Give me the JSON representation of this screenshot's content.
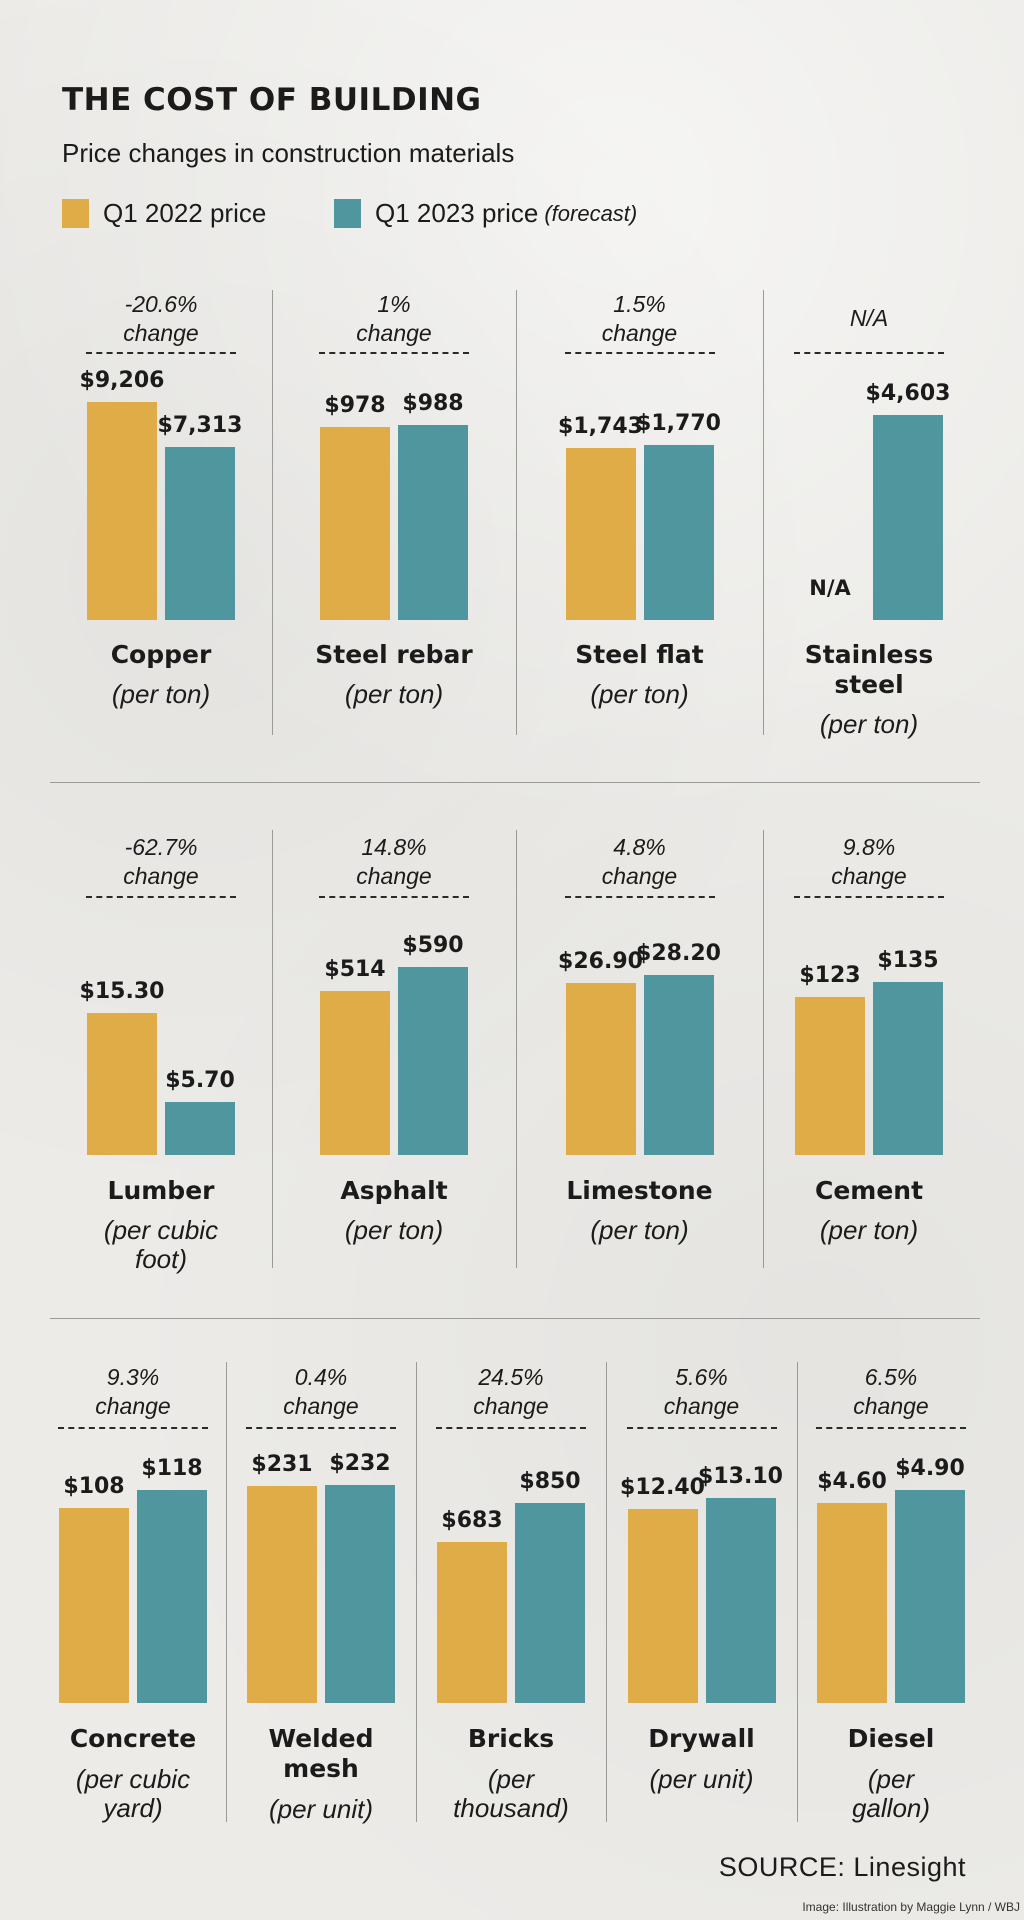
{
  "header": {
    "title": "THE COST OF BUILDING",
    "subtitle": "Price changes in construction materials"
  },
  "legend": {
    "q1_label": "Q1 2022 price",
    "q2_label": "Q1 2023 price",
    "q2_note": "(forecast)"
  },
  "colors": {
    "q1_2022": "#e0ac47",
    "q1_2023": "#4f969e",
    "background": "#ecebe8"
  },
  "chart_data": {
    "type": "bar",
    "title": "THE COST OF BUILDING",
    "subtitle": "Price changes in construction materials",
    "series": [
      {
        "name": "Q1 2022 price"
      },
      {
        "name": "Q1 2023 price (forecast)"
      }
    ],
    "rows": [
      {
        "y_scale_max": 11000,
        "items": [
          {
            "name": [
              "Copper"
            ],
            "unit": [
              "(per ton)"
            ],
            "change": [
              "-20.6%",
              "change"
            ],
            "values": [
              9206,
              7313
            ],
            "labels": [
              "$9,206",
              "$7,313"
            ]
          },
          {
            "name": [
              "Steel rebar"
            ],
            "unit": [
              "(per ton)"
            ],
            "change": [
              "1%",
              "change"
            ],
            "values": [
              978,
              988
            ],
            "labels": [
              "$978",
              "$988"
            ]
          },
          {
            "name": [
              "Steel flat"
            ],
            "unit": [
              "(per ton)"
            ],
            "change": [
              "1.5%",
              "change"
            ],
            "values": [
              1743,
              1770
            ],
            "labels": [
              "$1,743",
              "$1,770"
            ]
          },
          {
            "name": [
              "Stainless",
              "steel"
            ],
            "unit": [
              "(per ton)"
            ],
            "change": [
              "N/A"
            ],
            "values": [
              null,
              4603
            ],
            "labels": [
              "N/A",
              "$4,603"
            ]
          }
        ]
      },
      {
        "y_scale_max": 30,
        "items": [
          {
            "name": [
              "Lumber"
            ],
            "unit": [
              "(per cubic",
              "foot)"
            ],
            "change": [
              "-62.7%",
              "change"
            ],
            "values": [
              15.3,
              5.7
            ],
            "labels": [
              "$15.30",
              "$5.70"
            ]
          },
          {
            "name": [
              "Asphalt"
            ],
            "unit": [
              "(per ton)"
            ],
            "change": [
              "14.8%",
              "change"
            ],
            "values": [
              514,
              590
            ],
            "labels": [
              "$514",
              "$590"
            ]
          },
          {
            "name": [
              "Limestone"
            ],
            "unit": [
              "(per ton)"
            ],
            "change": [
              "4.8%",
              "change"
            ],
            "values": [
              26.9,
              28.2
            ],
            "labels": [
              "$26.90",
              "$28.20"
            ]
          },
          {
            "name": [
              "Cement"
            ],
            "unit": [
              "(per ton)"
            ],
            "change": [
              "9.8%",
              "change"
            ],
            "values": [
              123,
              135
            ],
            "labels": [
              "$123",
              "$135"
            ]
          }
        ]
      },
      {
        "y_scale_max": 1100,
        "items": [
          {
            "name": [
              "Concrete"
            ],
            "unit": [
              "(per cubic",
              "yard)"
            ],
            "change": [
              "9.3%",
              "change"
            ],
            "values": [
              108,
              118
            ],
            "labels": [
              "$108",
              "$118"
            ]
          },
          {
            "name": [
              "Welded",
              "mesh"
            ],
            "unit": [
              "(per unit)"
            ],
            "change": [
              "0.4%",
              "change"
            ],
            "values": [
              231,
              232
            ],
            "labels": [
              "$231",
              "$232"
            ]
          },
          {
            "name": [
              "Bricks"
            ],
            "unit": [
              "(per",
              "thousand)"
            ],
            "change": [
              "24.5%",
              "change"
            ],
            "values": [
              683,
              850
            ],
            "labels": [
              "$683",
              "$850"
            ]
          },
          {
            "name": [
              "Drywall"
            ],
            "unit": [
              "(per unit)"
            ],
            "change": [
              "5.6%",
              "change"
            ],
            "values": [
              12.4,
              13.1
            ],
            "labels": [
              "$12.40",
              "$13.10"
            ]
          },
          {
            "name": [
              "Diesel"
            ],
            "unit": [
              "(per",
              "gallon)"
            ],
            "change": [
              "6.5%",
              "change"
            ],
            "values": [
              4.6,
              4.9
            ],
            "labels": [
              "$4.60",
              "$4.90"
            ]
          }
        ]
      }
    ]
  },
  "footer": {
    "source": "SOURCE: Linesight",
    "credit": "Image: Illustration by Maggie Lynn / WBJ"
  }
}
